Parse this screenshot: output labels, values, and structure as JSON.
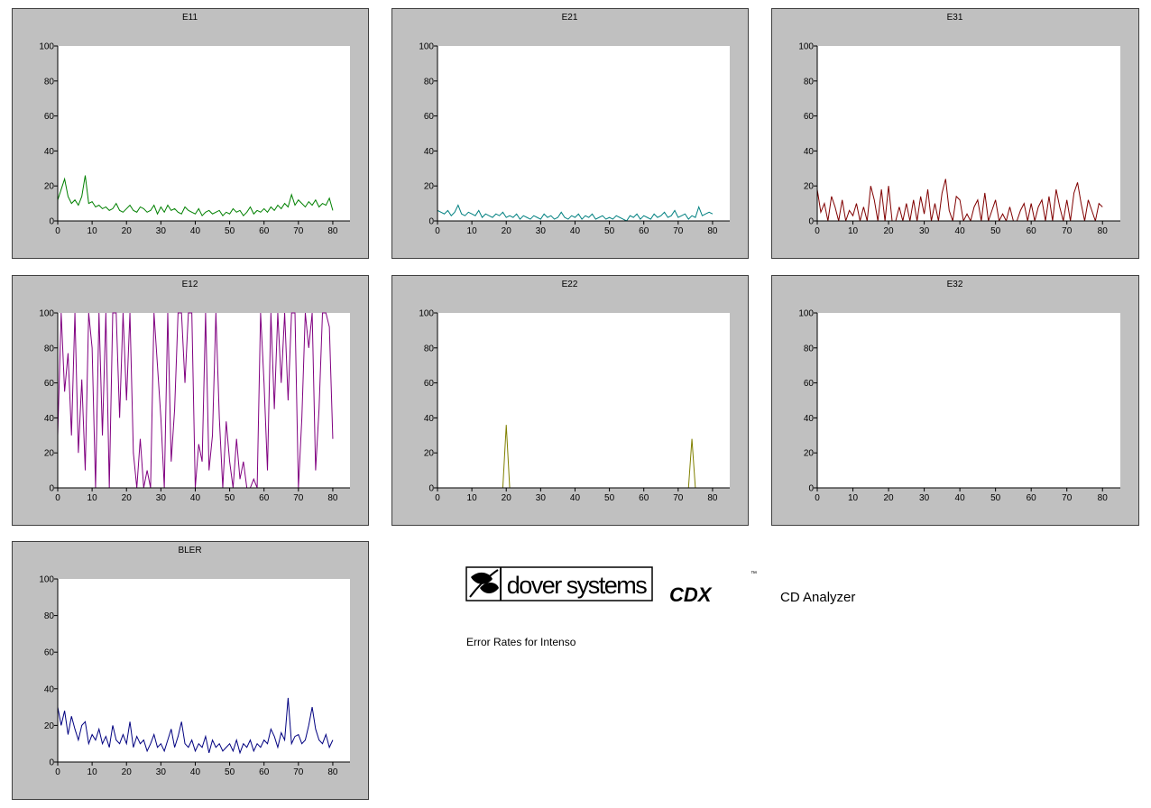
{
  "chart_data": [
    {
      "type": "line",
      "title": "E11",
      "color": "#008000",
      "xlim": [
        0,
        85
      ],
      "ylim": [
        0,
        100
      ],
      "xticks": [
        0,
        10,
        20,
        30,
        40,
        50,
        60,
        70,
        80
      ],
      "yticks": [
        0,
        20,
        40,
        60,
        80,
        100
      ],
      "x": [
        0,
        1,
        2,
        3,
        4,
        5,
        6,
        7,
        8,
        9,
        10,
        11,
        12,
        13,
        14,
        15,
        16,
        17,
        18,
        19,
        20,
        21,
        22,
        23,
        24,
        25,
        26,
        27,
        28,
        29,
        30,
        31,
        32,
        33,
        34,
        35,
        36,
        37,
        38,
        39,
        40,
        41,
        42,
        43,
        44,
        45,
        46,
        47,
        48,
        49,
        50,
        51,
        52,
        53,
        54,
        55,
        56,
        57,
        58,
        59,
        60,
        61,
        62,
        63,
        64,
        65,
        66,
        67,
        68,
        69,
        70,
        71,
        72,
        73,
        74,
        75,
        76,
        77,
        78,
        79,
        80
      ],
      "values": [
        12,
        18,
        24,
        14,
        10,
        12,
        9,
        14,
        26,
        10,
        11,
        8,
        9,
        7,
        8,
        6,
        7,
        10,
        6,
        5,
        7,
        9,
        6,
        5,
        8,
        7,
        5,
        6,
        9,
        4,
        8,
        5,
        9,
        6,
        7,
        5,
        4,
        8,
        6,
        5,
        4,
        7,
        3,
        5,
        6,
        4,
        5,
        6,
        3,
        5,
        4,
        7,
        5,
        6,
        3,
        5,
        8,
        4,
        6,
        5,
        7,
        5,
        8,
        6,
        9,
        7,
        10,
        8,
        15,
        9,
        12,
        10,
        8,
        11,
        9,
        12,
        8,
        10,
        9,
        13,
        6
      ]
    },
    {
      "type": "line",
      "title": "E21",
      "color": "#008080",
      "xlim": [
        0,
        85
      ],
      "ylim": [
        0,
        100
      ],
      "xticks": [
        0,
        10,
        20,
        30,
        40,
        50,
        60,
        70,
        80
      ],
      "yticks": [
        0,
        20,
        40,
        60,
        80,
        100
      ],
      "x": [
        0,
        1,
        2,
        3,
        4,
        5,
        6,
        7,
        8,
        9,
        10,
        11,
        12,
        13,
        14,
        15,
        16,
        17,
        18,
        19,
        20,
        21,
        22,
        23,
        24,
        25,
        26,
        27,
        28,
        29,
        30,
        31,
        32,
        33,
        34,
        35,
        36,
        37,
        38,
        39,
        40,
        41,
        42,
        43,
        44,
        45,
        46,
        47,
        48,
        49,
        50,
        51,
        52,
        53,
        54,
        55,
        56,
        57,
        58,
        59,
        60,
        61,
        62,
        63,
        64,
        65,
        66,
        67,
        68,
        69,
        70,
        71,
        72,
        73,
        74,
        75,
        76,
        77,
        78,
        79,
        80
      ],
      "values": [
        6,
        5,
        4,
        6,
        3,
        5,
        9,
        4,
        3,
        5,
        4,
        3,
        6,
        2,
        4,
        3,
        2,
        4,
        3,
        5,
        2,
        3,
        2,
        4,
        1,
        3,
        2,
        1,
        3,
        2,
        1,
        4,
        2,
        3,
        1,
        2,
        5,
        2,
        1,
        3,
        2,
        4,
        1,
        3,
        2,
        4,
        1,
        2,
        3,
        1,
        2,
        1,
        3,
        2,
        1,
        0,
        3,
        2,
        4,
        1,
        3,
        2,
        1,
        4,
        2,
        3,
        5,
        2,
        3,
        6,
        2,
        3,
        4,
        1,
        3,
        2,
        8,
        3,
        4,
        5,
        4
      ]
    },
    {
      "type": "line",
      "title": "E31",
      "color": "#800000",
      "xlim": [
        0,
        85
      ],
      "ylim": [
        0,
        100
      ],
      "xticks": [
        0,
        10,
        20,
        30,
        40,
        50,
        60,
        70,
        80
      ],
      "yticks": [
        0,
        20,
        40,
        60,
        80,
        100
      ],
      "x": [
        0,
        1,
        2,
        3,
        4,
        5,
        6,
        7,
        8,
        9,
        10,
        11,
        12,
        13,
        14,
        15,
        16,
        17,
        18,
        19,
        20,
        21,
        22,
        23,
        24,
        25,
        26,
        27,
        28,
        29,
        30,
        31,
        32,
        33,
        34,
        35,
        36,
        37,
        38,
        39,
        40,
        41,
        42,
        43,
        44,
        45,
        46,
        47,
        48,
        49,
        50,
        51,
        52,
        53,
        54,
        55,
        56,
        57,
        58,
        59,
        60,
        61,
        62,
        63,
        64,
        65,
        66,
        67,
        68,
        69,
        70,
        71,
        72,
        73,
        74,
        75,
        76,
        77,
        78,
        79,
        80
      ],
      "values": [
        18,
        5,
        10,
        0,
        14,
        8,
        0,
        12,
        0,
        6,
        3,
        10,
        0,
        8,
        0,
        20,
        12,
        0,
        18,
        0,
        20,
        0,
        0,
        8,
        0,
        10,
        0,
        12,
        0,
        14,
        4,
        18,
        0,
        10,
        0,
        16,
        24,
        6,
        0,
        14,
        12,
        0,
        4,
        0,
        8,
        12,
        0,
        16,
        0,
        6,
        12,
        0,
        4,
        0,
        8,
        0,
        0,
        6,
        10,
        0,
        10,
        0,
        8,
        12,
        0,
        14,
        0,
        18,
        8,
        0,
        12,
        0,
        16,
        22,
        10,
        0,
        12,
        6,
        0,
        10,
        8
      ]
    },
    {
      "type": "line",
      "title": "E12",
      "color": "#800080",
      "xlim": [
        0,
        85
      ],
      "ylim": [
        0,
        100
      ],
      "xticks": [
        0,
        10,
        20,
        30,
        40,
        50,
        60,
        70,
        80
      ],
      "yticks": [
        0,
        20,
        40,
        60,
        80,
        100
      ],
      "x": [
        0,
        1,
        2,
        3,
        4,
        5,
        6,
        7,
        8,
        9,
        10,
        11,
        12,
        13,
        14,
        15,
        16,
        17,
        18,
        19,
        20,
        21,
        22,
        23,
        24,
        25,
        26,
        27,
        28,
        29,
        30,
        31,
        32,
        33,
        34,
        35,
        36,
        37,
        38,
        39,
        40,
        41,
        42,
        43,
        44,
        45,
        46,
        47,
        48,
        49,
        50,
        51,
        52,
        53,
        54,
        55,
        56,
        57,
        58,
        59,
        60,
        61,
        62,
        63,
        64,
        65,
        66,
        67,
        68,
        69,
        70,
        71,
        72,
        73,
        74,
        75,
        76,
        77,
        78,
        79,
        80
      ],
      "values": [
        30,
        100,
        55,
        77,
        30,
        100,
        20,
        62,
        10,
        100,
        80,
        0,
        100,
        30,
        100,
        0,
        100,
        100,
        40,
        100,
        50,
        100,
        20,
        0,
        28,
        0,
        10,
        0,
        100,
        70,
        40,
        0,
        100,
        15,
        45,
        100,
        100,
        60,
        100,
        100,
        0,
        25,
        15,
        100,
        10,
        30,
        100,
        40,
        0,
        38,
        15,
        0,
        28,
        5,
        15,
        0,
        0,
        5,
        0,
        100,
        60,
        10,
        100,
        45,
        100,
        60,
        100,
        50,
        100,
        100,
        0,
        40,
        100,
        80,
        100,
        10,
        45,
        100,
        100,
        92,
        28
      ]
    },
    {
      "type": "line",
      "title": "E22",
      "color": "#808000",
      "xlim": [
        0,
        85
      ],
      "ylim": [
        0,
        100
      ],
      "xticks": [
        0,
        10,
        20,
        30,
        40,
        50,
        60,
        70,
        80
      ],
      "yticks": [
        0,
        20,
        40,
        60,
        80,
        100
      ],
      "x": [
        0,
        1,
        2,
        3,
        4,
        5,
        6,
        7,
        8,
        9,
        10,
        11,
        12,
        13,
        14,
        15,
        16,
        17,
        18,
        19,
        20,
        21,
        22,
        23,
        24,
        25,
        26,
        27,
        28,
        29,
        30,
        31,
        32,
        33,
        34,
        35,
        36,
        37,
        38,
        39,
        40,
        41,
        42,
        43,
        44,
        45,
        46,
        47,
        48,
        49,
        50,
        51,
        52,
        53,
        54,
        55,
        56,
        57,
        58,
        59,
        60,
        61,
        62,
        63,
        64,
        65,
        66,
        67,
        68,
        69,
        70,
        71,
        72,
        73,
        74,
        75,
        76,
        77,
        78,
        79,
        80
      ],
      "values": [
        0,
        0,
        0,
        0,
        0,
        0,
        0,
        0,
        0,
        0,
        0,
        0,
        0,
        0,
        0,
        0,
        0,
        0,
        0,
        0,
        36,
        0,
        0,
        0,
        0,
        0,
        0,
        0,
        0,
        0,
        0,
        0,
        0,
        0,
        0,
        0,
        0,
        0,
        0,
        0,
        0,
        0,
        0,
        0,
        0,
        0,
        0,
        0,
        0,
        0,
        0,
        0,
        0,
        0,
        0,
        0,
        0,
        0,
        0,
        0,
        0,
        0,
        0,
        0,
        0,
        0,
        0,
        0,
        0,
        0,
        0,
        0,
        0,
        0,
        28,
        0,
        0,
        0,
        0,
        0,
        0
      ]
    },
    {
      "type": "line",
      "title": "E32",
      "color": "#808080",
      "xlim": [
        0,
        85
      ],
      "ylim": [
        0,
        100
      ],
      "xticks": [
        0,
        10,
        20,
        30,
        40,
        50,
        60,
        70,
        80
      ],
      "yticks": [
        0,
        20,
        40,
        60,
        80,
        100
      ],
      "x": [
        0,
        1,
        2,
        3,
        4,
        5,
        6,
        7,
        8,
        9,
        10,
        11,
        12,
        13,
        14,
        15,
        16,
        17,
        18,
        19,
        20,
        21,
        22,
        23,
        24,
        25,
        26,
        27,
        28,
        29,
        30,
        31,
        32,
        33,
        34,
        35,
        36,
        37,
        38,
        39,
        40,
        41,
        42,
        43,
        44,
        45,
        46,
        47,
        48,
        49,
        50,
        51,
        52,
        53,
        54,
        55,
        56,
        57,
        58,
        59,
        60,
        61,
        62,
        63,
        64,
        65,
        66,
        67,
        68,
        69,
        70,
        71,
        72,
        73,
        74,
        75,
        76,
        77,
        78,
        79,
        80
      ],
      "values": [
        0,
        0,
        0,
        0,
        0,
        0,
        0,
        0,
        0,
        0,
        0,
        0,
        0,
        0,
        0,
        0,
        0,
        0,
        0,
        0,
        0,
        0,
        0,
        0,
        0,
        0,
        0,
        0,
        0,
        0,
        0,
        0,
        0,
        0,
        0,
        0,
        0,
        0,
        0,
        0,
        0,
        0,
        0,
        0,
        0,
        0,
        0,
        0,
        0,
        0,
        0,
        0,
        0,
        0,
        0,
        0,
        0,
        0,
        0,
        0,
        0,
        0,
        0,
        0,
        0,
        0,
        0,
        0,
        0,
        0,
        0,
        0,
        0,
        0,
        0,
        0,
        0,
        0,
        0,
        0,
        0
      ]
    },
    {
      "type": "line",
      "title": "BLER",
      "color": "#000080",
      "xlim": [
        0,
        85
      ],
      "ylim": [
        0,
        100
      ],
      "xticks": [
        0,
        10,
        20,
        30,
        40,
        50,
        60,
        70,
        80
      ],
      "yticks": [
        0,
        20,
        40,
        60,
        80,
        100
      ],
      "x": [
        0,
        1,
        2,
        3,
        4,
        5,
        6,
        7,
        8,
        9,
        10,
        11,
        12,
        13,
        14,
        15,
        16,
        17,
        18,
        19,
        20,
        21,
        22,
        23,
        24,
        25,
        26,
        27,
        28,
        29,
        30,
        31,
        32,
        33,
        34,
        35,
        36,
        37,
        38,
        39,
        40,
        41,
        42,
        43,
        44,
        45,
        46,
        47,
        48,
        49,
        50,
        51,
        52,
        53,
        54,
        55,
        56,
        57,
        58,
        59,
        60,
        61,
        62,
        63,
        64,
        65,
        66,
        67,
        68,
        69,
        70,
        71,
        72,
        73,
        74,
        75,
        76,
        77,
        78,
        79,
        80
      ],
      "values": [
        30,
        20,
        28,
        15,
        25,
        18,
        12,
        20,
        22,
        10,
        15,
        12,
        18,
        10,
        14,
        8,
        20,
        12,
        10,
        15,
        10,
        22,
        8,
        14,
        10,
        12,
        6,
        10,
        15,
        8,
        10,
        6,
        12,
        18,
        8,
        14,
        22,
        10,
        8,
        12,
        6,
        10,
        8,
        14,
        5,
        12,
        8,
        10,
        6,
        8,
        10,
        6,
        12,
        5,
        10,
        8,
        12,
        6,
        10,
        8,
        12,
        10,
        18,
        14,
        8,
        16,
        12,
        35,
        10,
        14,
        15,
        10,
        12,
        20,
        30,
        18,
        12,
        10,
        15,
        8,
        12
      ]
    }
  ],
  "branding": {
    "logo": "dover systems",
    "product": "CDX",
    "trademark": "™",
    "subtitle": "CD Analyzer",
    "caption": "Error Rates for Intenso"
  }
}
